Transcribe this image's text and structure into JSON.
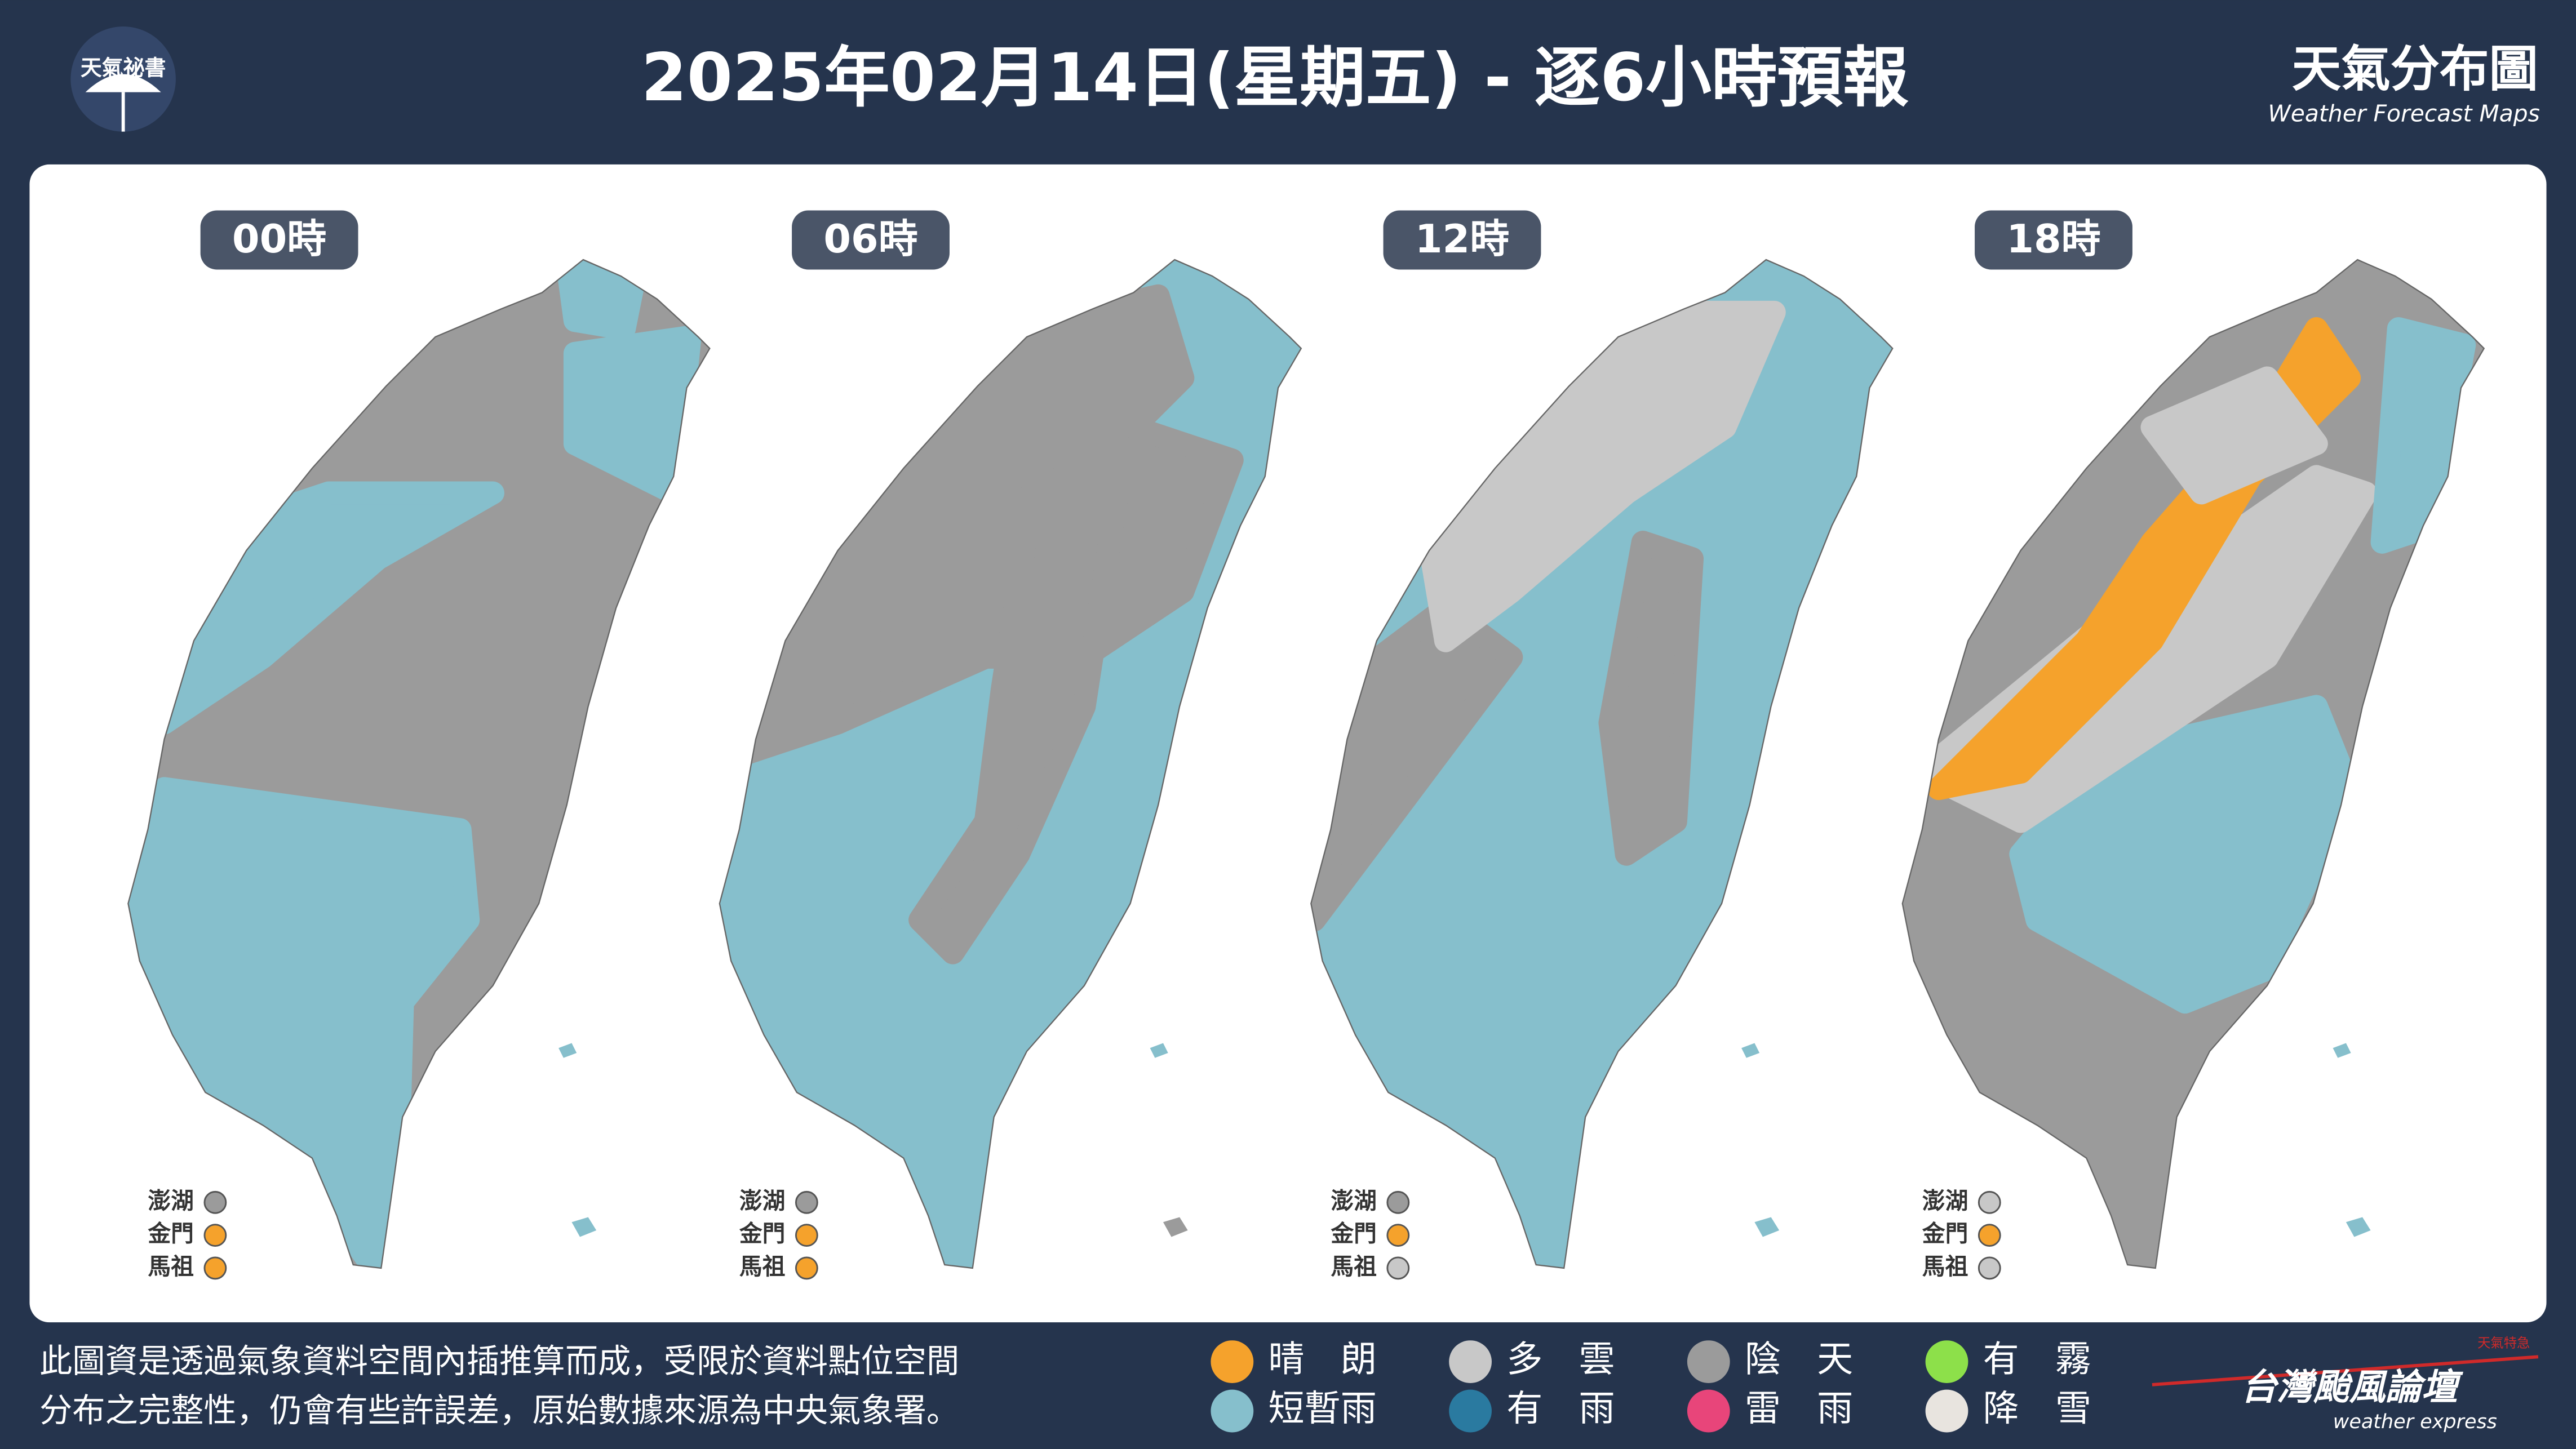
{
  "header": {
    "logo": "天氣祕書",
    "title": "2025年02月14日(星期五) - 逐6小時預報",
    "brand": "天氣分布圖",
    "brand_subtitle": "Weather Forecast Maps"
  },
  "panels": [
    {
      "time": "00時",
      "islands": [
        {
          "name": "澎湖",
          "color": "#9b9b9b"
        },
        {
          "name": "金門",
          "color": "#f5a22c"
        },
        {
          "name": "馬祖",
          "color": "#f5a22c"
        }
      ]
    },
    {
      "time": "06時",
      "islands": [
        {
          "name": "澎湖",
          "color": "#9b9b9b"
        },
        {
          "name": "金門",
          "color": "#f5a22c"
        },
        {
          "name": "馬祖",
          "color": "#f5a22c"
        }
      ]
    },
    {
      "time": "12時",
      "islands": [
        {
          "name": "澎湖",
          "color": "#9b9b9b"
        },
        {
          "name": "金門",
          "color": "#f5a22c"
        },
        {
          "name": "馬祖",
          "color": "#c8c8c8"
        }
      ]
    },
    {
      "time": "18時",
      "islands": [
        {
          "name": "澎湖",
          "color": "#c8c8c8"
        },
        {
          "name": "金門",
          "color": "#f5a22c"
        },
        {
          "name": "馬祖",
          "color": "#c8c8c8"
        }
      ]
    }
  ],
  "legend": [
    {
      "label": "晴　朗",
      "color": "#f5a22c"
    },
    {
      "label": "多　雲",
      "color": "#c8c8c8"
    },
    {
      "label": "陰　天",
      "color": "#9b9b9b"
    },
    {
      "label": "有　霧",
      "color": "#8de04a"
    },
    {
      "label": "短暫雨",
      "color": "#86bfcc"
    },
    {
      "label": "有　雨",
      "color": "#2a7aa0"
    },
    {
      "label": "雷　雨",
      "color": "#e8457a"
    },
    {
      "label": "降　雪",
      "color": "#e8e4df"
    }
  ],
  "footer": {
    "note": [
      "此圖資是透過氣象資料空間內插推算而成，受限於資料點位空間",
      "分布之完整性，仍會有些許誤差，原始數據來源為中央氣象署。"
    ],
    "brand": "台灣颱風論壇",
    "brand_en": "weather express",
    "brand_tag": "天氣特急"
  }
}
